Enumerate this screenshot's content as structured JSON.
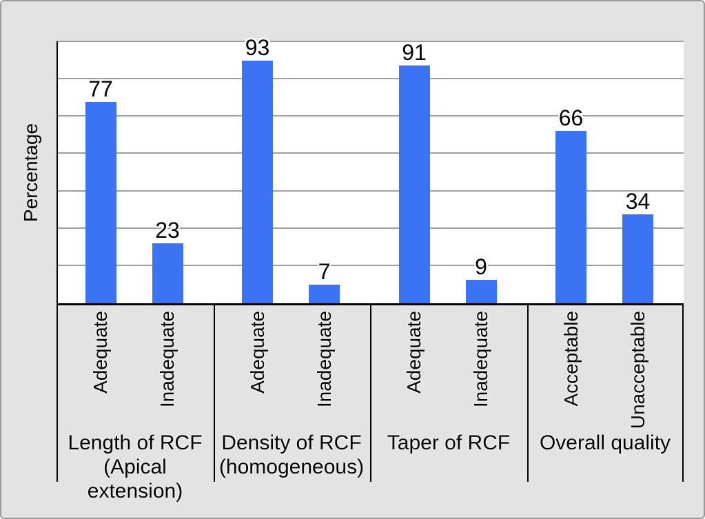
{
  "colors": {
    "bar": "#3b73f5",
    "background": "#e3e3e3",
    "plot_background": "#ffffff",
    "gridline": "#9e9e9e",
    "axis": "#000000",
    "outer_border": "#9c9c9c",
    "text": "#000000"
  },
  "chart_data": {
    "type": "bar",
    "title": "",
    "ylabel": "Percentage",
    "xlabel": "",
    "ylim": [
      0,
      100
    ],
    "grid": true,
    "gridline_divisions": 7,
    "legend": "none",
    "bar_color": "#3b73f5",
    "groups": [
      {
        "label": "Length of RCF\n(Apical extension)",
        "categories": [
          "Adequate",
          "Inadequate"
        ],
        "values": [
          77,
          23
        ]
      },
      {
        "label": "Density of RCF\n(homogeneous)",
        "categories": [
          "Adequate",
          "Inadequate"
        ],
        "values": [
          93,
          7
        ]
      },
      {
        "label": "Taper of RCF",
        "categories": [
          "Adequate",
          "Inadequate"
        ],
        "values": [
          91,
          9
        ]
      },
      {
        "label": "Overall quality",
        "categories": [
          "Acceptable",
          "Unacceptable"
        ],
        "values": [
          66,
          34
        ]
      }
    ]
  }
}
